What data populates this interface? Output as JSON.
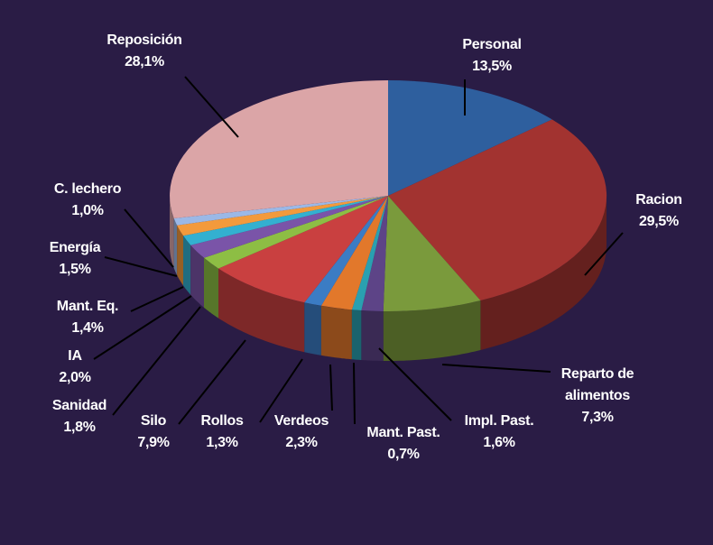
{
  "chart_data": {
    "type": "pie",
    "style": "3d",
    "background": "#2a1c45",
    "start": "top",
    "direction": "clockwise",
    "slices": [
      {
        "label": "Personal",
        "value": 13.5,
        "text": "13,5%",
        "color": "#2e5f9e"
      },
      {
        "label": "Racion",
        "value": 29.5,
        "text": "29,5%",
        "color": "#a23330"
      },
      {
        "label": "Reparto de alimentos",
        "value": 7.3,
        "text": "7,3%",
        "color": "#7a9a3c"
      },
      {
        "label": "Impl. Past.",
        "value": 1.6,
        "text": "1,6%",
        "color": "#5d4487"
      },
      {
        "label": "Mant. Past.",
        "value": 0.7,
        "text": "0,7%",
        "color": "#2aa0b0"
      },
      {
        "label": "Verdeos",
        "value": 2.3,
        "text": "2,3%",
        "color": "#e2782b"
      },
      {
        "label": "Rollos",
        "value": 1.3,
        "text": "1,3%",
        "color": "#3b7cc4"
      },
      {
        "label": "Silo",
        "value": 7.9,
        "text": "7,9%",
        "color": "#c94040"
      },
      {
        "label": "Sanidad",
        "value": 1.8,
        "text": "1,8%",
        "color": "#8dbe44"
      },
      {
        "label": "IA",
        "value": 2.0,
        "text": "2,0%",
        "color": "#7a54a8"
      },
      {
        "label": "Mant. Eq.",
        "value": 1.4,
        "text": "1,4%",
        "color": "#33b0d0"
      },
      {
        "label": "Energía",
        "value": 1.5,
        "text": "1,5%",
        "color": "#f39a3c"
      },
      {
        "label": "C. lechero",
        "value": 1.0,
        "text": "1,0%",
        "color": "#9bb8e6"
      },
      {
        "label": "Reposición",
        "value": 28.1,
        "text": "28,1%",
        "color": "#dba5a7"
      }
    ]
  }
}
